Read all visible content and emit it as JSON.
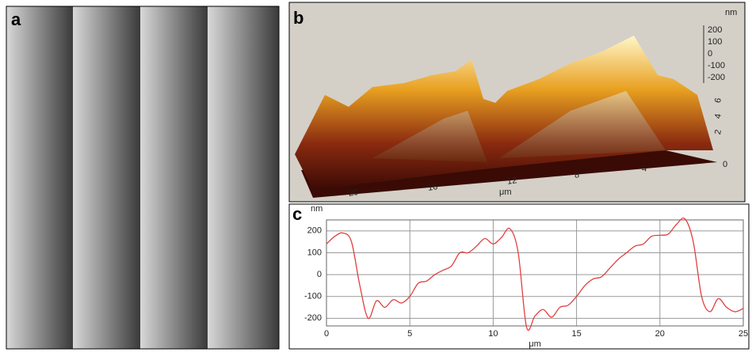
{
  "panels": {
    "a": "a",
    "b": "b",
    "c": "c"
  },
  "panel_b": {
    "z_unit": "nm",
    "z_ticks": [
      "200",
      "100",
      "0",
      "-100",
      "-200"
    ],
    "x_ticks": [
      "20",
      "16",
      "12",
      "8",
      "4"
    ],
    "x_unit": "μm",
    "y_ticks": [
      "0",
      "2",
      "4",
      "6"
    ]
  },
  "chart_data": {
    "type": "line",
    "y_label": "nm",
    "x_label": "μm",
    "x": [
      0,
      0.5,
      1,
      1.5,
      2,
      2.5,
      3,
      3.5,
      4,
      4.5,
      5,
      5.5,
      6,
      6.5,
      7,
      7.5,
      8,
      8.5,
      9,
      9.5,
      10,
      10.5,
      11,
      11.5,
      12,
      12.5,
      13,
      13.5,
      14,
      14.5,
      15,
      15.5,
      16,
      16.5,
      17,
      17.5,
      18,
      18.5,
      19,
      19.5,
      20,
      20.5,
      21,
      21.5,
      22,
      22.5,
      23,
      23.5,
      24,
      24.5,
      25
    ],
    "series": [
      {
        "color": "#e04040",
        "values": [
          140,
          175,
          190,
          150,
          -50,
          -200,
          -120,
          -150,
          -115,
          -130,
          -100,
          -40,
          -30,
          0,
          20,
          40,
          100,
          100,
          130,
          165,
          140,
          170,
          210,
          100,
          -240,
          -190,
          -160,
          -195,
          -150,
          -140,
          -100,
          -50,
          -20,
          -10,
          30,
          70,
          100,
          130,
          140,
          175,
          180,
          185,
          230,
          255,
          150,
          -100,
          -170,
          -110,
          -150,
          -170,
          -155
        ]
      }
    ],
    "xlim": [
      0,
      25
    ],
    "xticks": [
      0,
      5,
      10,
      15,
      20,
      25
    ],
    "ylim": [
      -235,
      250
    ],
    "yticks": [
      -200,
      -100,
      0,
      100,
      200
    ],
    "grid": true
  }
}
